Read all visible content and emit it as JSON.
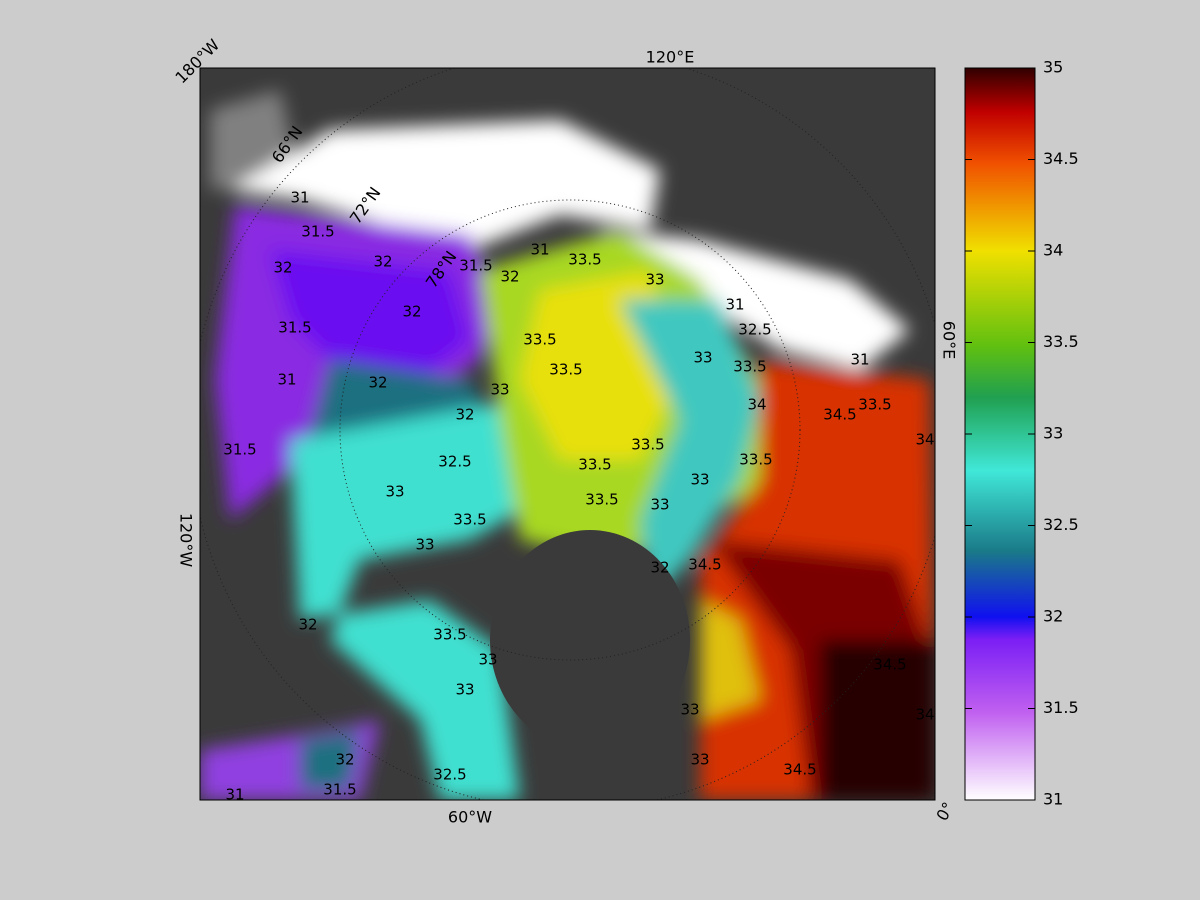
{
  "map": {
    "longitude_labels": [
      "180°W",
      "120°E",
      "60°E",
      "0°",
      "60°W",
      "120°W"
    ],
    "latitude_labels": [
      "66°N",
      "72°N",
      "78°N"
    ],
    "contour_labels": [
      31,
      31.5,
      32,
      32,
      31.5,
      31,
      32,
      32,
      32,
      31.5,
      32,
      31,
      33.5,
      33,
      33.5,
      33.5,
      33,
      32.5,
      33,
      33.5,
      33.5,
      33.5,
      33.5,
      33,
      33.5,
      34,
      33.5,
      33,
      33,
      31,
      32.5,
      34.5,
      33.5,
      31,
      34,
      34.5,
      32,
      33.5,
      33,
      33,
      33,
      33,
      34.5,
      34.5,
      34,
      31,
      31.5,
      32,
      32.5,
      33,
      32,
      31.5
    ]
  },
  "colorbar": {
    "lim": [
      31,
      35
    ],
    "ticks": [
      31,
      31.5,
      32,
      32.5,
      33,
      33.5,
      34,
      34.5,
      35
    ]
  }
}
